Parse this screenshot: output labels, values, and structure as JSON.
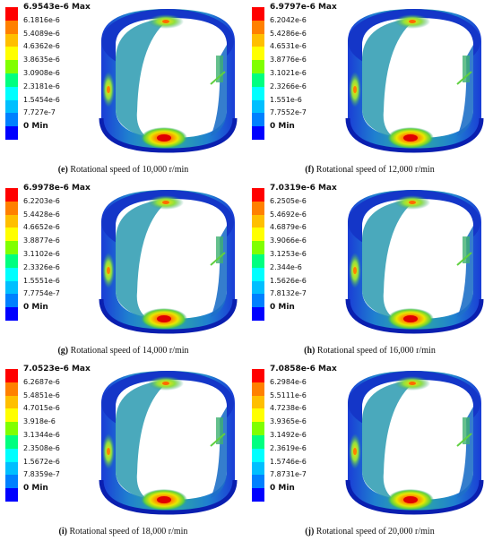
{
  "colors": [
    "#0000ff",
    "#0080ff",
    "#00bfff",
    "#00ffff",
    "#00ff80",
    "#80ff00",
    "#ffff00",
    "#ffbf00",
    "#ff8000",
    "#ff0000"
  ],
  "panels": [
    {
      "letter": "(e)",
      "caption": " Rotational speed of 10,000 r/min",
      "max": "6.9543e-6 Max",
      "ticks": [
        "6.1816e-6",
        "5.4089e-6",
        "4.6362e-6",
        "3.8635e-6",
        "3.0908e-6",
        "2.3181e-6",
        "1.5454e-6",
        "7.727e-7"
      ],
      "min": "0 Min"
    },
    {
      "letter": "(f)",
      "caption": " Rotational speed of 12,000 r/min",
      "max": "6.9797e-6 Max",
      "ticks": [
        "6.2042e-6",
        "5.4286e-6",
        "4.6531e-6",
        "3.8776e-6",
        "3.1021e-6",
        "2.3266e-6",
        "1.551e-6",
        "7.7552e-7"
      ],
      "min": "0 Min"
    },
    {
      "letter": "(g)",
      "caption": " Rotational speed of 14,000 r/min",
      "max": "6.9978e-6 Max",
      "ticks": [
        "6.2203e-6",
        "5.4428e-6",
        "4.6652e-6",
        "3.8877e-6",
        "3.1102e-6",
        "2.3326e-6",
        "1.5551e-6",
        "7.7754e-7"
      ],
      "min": "0 Min"
    },
    {
      "letter": "(h)",
      "caption": " Rotational speed of 16,000 r/min",
      "max": "7.0319e-6 Max",
      "ticks": [
        "6.2505e-6",
        "5.4692e-6",
        "4.6879e-6",
        "3.9066e-6",
        "3.1253e-6",
        "2.344e-6",
        "1.5626e-6",
        "7.8132e-7"
      ],
      "min": "0 Min"
    },
    {
      "letter": "(i)",
      "caption": " Rotational speed of 18,000 r/min",
      "max": "7.0523e-6 Max",
      "ticks": [
        "6.2687e-6",
        "5.4851e-6",
        "4.7015e-6",
        "3.918e-6",
        "3.1344e-6",
        "2.3508e-6",
        "1.5672e-6",
        "7.8359e-7"
      ],
      "min": "0 Min"
    },
    {
      "letter": "(j)",
      "caption": " Rotational speed of 20,000 r/min",
      "max": "7.0858e-6 Max",
      "ticks": [
        "6.2984e-6",
        "5.5111e-6",
        "4.7238e-6",
        "3.9365e-6",
        "3.1492e-6",
        "2.3619e-6",
        "1.5746e-6",
        "7.8731e-7"
      ],
      "min": "0 Min"
    }
  ]
}
